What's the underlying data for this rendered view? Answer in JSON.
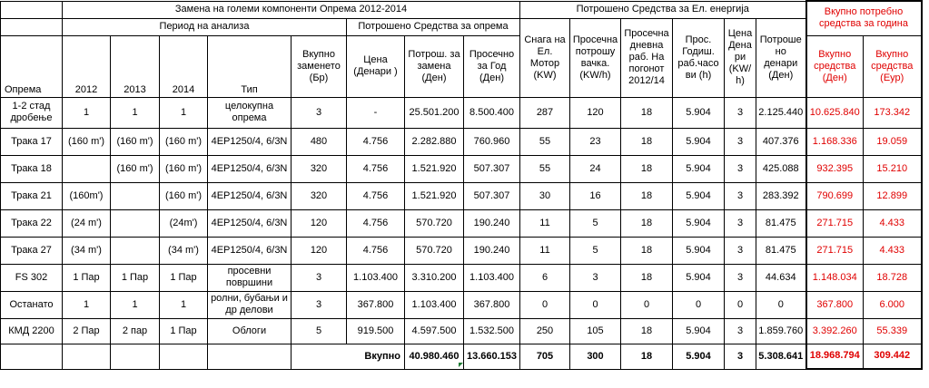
{
  "header": {
    "group_replacement": "Замена на големи компоненти Опрема 2012-2014",
    "group_energy": "Потрошено Средства за Ел. енергија",
    "group_total": "Вкупно потребно средства за година",
    "period": "Период на анализа",
    "spent_equipment": "Потрошено Средства за опрема"
  },
  "columns": {
    "equipment": "Опрема",
    "y2012": "2012",
    "y2013": "2013",
    "y2014": "2014",
    "type": "Тип",
    "total_replaced": "Вкупно заменето (Бр)",
    "price": "Цена (Денари )",
    "spent_replacement": "Потрош. за замена (Ден)",
    "avg_per_year": "Просечно за Год (Ден)",
    "motor_power": "Снага на Ел. Мотор (KW)",
    "avg_consumption": "Просечна потрошу вачка. (KW/h)",
    "avg_daily_hours": "Просечна дневна раб. На погонот 2012/14",
    "avg_annual_hours": "Прос. Годиш. раб.часо ви (h)",
    "energy_price": "Цена Дена ри (KW/ h)",
    "spent_denari": "Потроше но денари (Ден)",
    "total_den": "Вкупно средства (Ден)",
    "total_eur": "Вкупно средства (Еур)"
  },
  "rows": [
    {
      "name": "1-2 стад дробење",
      "y2012": "1",
      "y2013": "1",
      "y2014": "1",
      "type": "целокупна опрема",
      "count": "3",
      "price": "-",
      "spent": "25.501.200",
      "avg": "8.500.400",
      "power": "287",
      "cons": "120",
      "daily": "18",
      "hours": "5.904",
      "eprice": "3",
      "energy": "2.125.440",
      "total_den": "10.625.840",
      "total_eur": "173.342"
    },
    {
      "name": "Трака 17",
      "y2012": "(160 m')",
      "y2013": "(160 m')",
      "y2014": "(160 m')",
      "type": "4EP1250/4, 6/3N",
      "count": "480",
      "price": "4.756",
      "spent": "2.282.880",
      "avg": "760.960",
      "power": "55",
      "cons": "23",
      "daily": "18",
      "hours": "5.904",
      "eprice": "3",
      "energy": "407.376",
      "total_den": "1.168.336",
      "total_eur": "19.059"
    },
    {
      "name": "Трака 18",
      "y2012": "",
      "y2013": "(160 m')",
      "y2014": "(160 m')",
      "type": "4EP1250/4, 6/3N",
      "count": "320",
      "price": "4.756",
      "spent": "1.521.920",
      "avg": "507.307",
      "power": "55",
      "cons": "24",
      "daily": "18",
      "hours": "5.904",
      "eprice": "3",
      "energy": "425.088",
      "total_den": "932.395",
      "total_eur": "15.210"
    },
    {
      "name": "Трака 21",
      "y2012": "(160m')",
      "y2013": "",
      "y2014": "(160 m')",
      "type": "4EP1250/4, 6/3N",
      "count": "320",
      "price": "4.756",
      "spent": "1.521.920",
      "avg": "507.307",
      "power": "30",
      "cons": "16",
      "daily": "18",
      "hours": "5.904",
      "eprice": "3",
      "energy": "283.392",
      "total_den": "790.699",
      "total_eur": "12.899"
    },
    {
      "name": "Трака 22",
      "y2012": "(24 m')",
      "y2013": "",
      "y2014": "(24m')",
      "type": "4EP1250/4, 6/3N",
      "count": "120",
      "price": "4.756",
      "spent": "570.720",
      "avg": "190.240",
      "power": "11",
      "cons": "5",
      "daily": "18",
      "hours": "5.904",
      "eprice": "3",
      "energy": "81.475",
      "total_den": "271.715",
      "total_eur": "4.433"
    },
    {
      "name": "Трака 27",
      "y2012": "(34 m')",
      "y2013": "",
      "y2014": "(34 m')",
      "type": "4EP1250/4, 6/3N",
      "count": "120",
      "price": "4.756",
      "spent": "570.720",
      "avg": "190.240",
      "power": "11",
      "cons": "5",
      "daily": "18",
      "hours": "5.904",
      "eprice": "3",
      "energy": "81.475",
      "total_den": "271.715",
      "total_eur": "4.433"
    },
    {
      "name": "FS 302",
      "y2012": "1 Пар",
      "y2013": "1 Пар",
      "y2014": "1 Пар",
      "type": "просевни површини",
      "count": "3",
      "price": "1.103.400",
      "spent": "3.310.200",
      "avg": "1.103.400",
      "power": "6",
      "cons": "3",
      "daily": "18",
      "hours": "5.904",
      "eprice": "3",
      "energy": "44.634",
      "total_den": "1.148.034",
      "total_eur": "18.728"
    },
    {
      "name": "Останато",
      "y2012": "1",
      "y2013": "1",
      "y2014": "1",
      "type": "ролни, бубањи и др делови",
      "count": "3",
      "price": "367.800",
      "spent": "1.103.400",
      "avg": "367.800",
      "power": "0",
      "cons": "0",
      "daily": "0",
      "hours": "0",
      "eprice": "0",
      "energy": "0",
      "total_den": "367.800",
      "total_eur": "6.000"
    },
    {
      "name": "КМД 2200",
      "y2012": "2 Пар",
      "y2013": "2 пар",
      "y2014": "1 Пар",
      "type": "Облоги",
      "count": "5",
      "price": "919.500",
      "spent": "4.597.500",
      "avg": "1.532.500",
      "power": "250",
      "cons": "105",
      "daily": "18",
      "hours": "5.904",
      "eprice": "3",
      "energy": "1.859.760",
      "total_den": "3.392.260",
      "total_eur": "55.339"
    }
  ],
  "totals": {
    "label": "Вкупно",
    "spent": "40.980.460",
    "avg": "13.660.153",
    "power": "705",
    "cons": "300",
    "daily": "18",
    "hours": "5.904",
    "eprice": "3",
    "energy": "5.308.641",
    "total_den": "18.968.794",
    "total_eur": "309.442"
  },
  "colors": {
    "text": "#000000",
    "accent_red": "#e00000",
    "grid": "#000000",
    "marker_green": "#1e7b34"
  }
}
